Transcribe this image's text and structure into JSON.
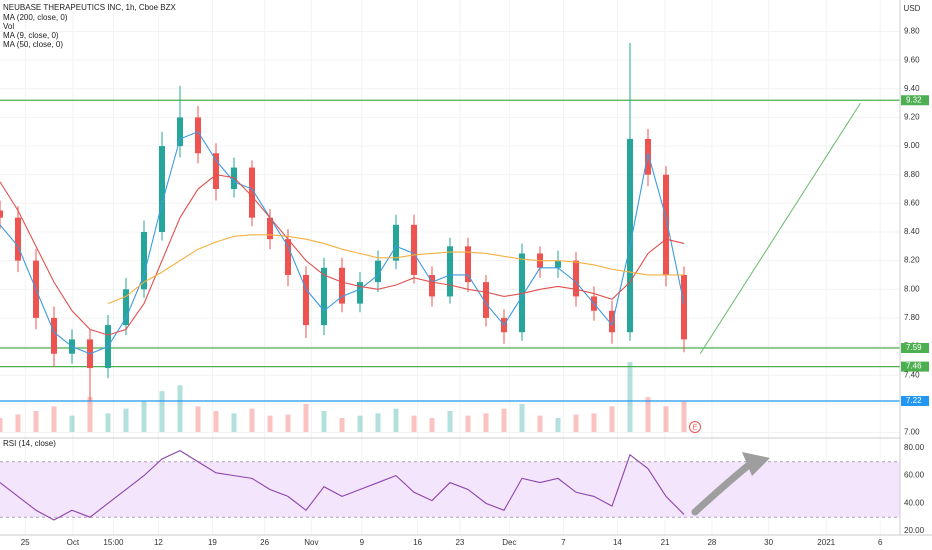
{
  "chart_data": {
    "type": "candlestick",
    "title": "NEUBASE THERAPEUTICS INC, 1h, Cboe BZX",
    "indicators": [
      "MA (200, close, 0)",
      "Vol",
      "MA (9, close, 0)",
      "MA (50, close, 0)"
    ],
    "currency": "USD",
    "earnings_marker": "E",
    "x": [
      0,
      2,
      4,
      6,
      8,
      10,
      12,
      14,
      16,
      18,
      20,
      22,
      24,
      26,
      28,
      30,
      32,
      34,
      36,
      38,
      40,
      42,
      44,
      46,
      48,
      50,
      52,
      54,
      56,
      58,
      60,
      62,
      64,
      66,
      68,
      70,
      72,
      74,
      76
    ],
    "open": [
      8.55,
      8.5,
      8.2,
      7.8,
      7.55,
      7.65,
      7.45,
      7.75,
      8.0,
      8.4,
      9.0,
      9.2,
      8.95,
      8.7,
      8.85,
      8.5,
      8.35,
      8.1,
      7.75,
      8.15,
      7.9,
      8.05,
      8.2,
      8.45,
      8.1,
      7.95,
      8.3,
      8.05,
      7.8,
      7.7,
      8.25,
      8.15,
      8.2,
      7.95,
      7.85,
      7.7,
      9.05,
      8.8,
      8.1
    ],
    "high": [
      8.62,
      8.58,
      8.28,
      7.88,
      7.72,
      7.72,
      7.82,
      8.08,
      8.48,
      9.1,
      9.42,
      9.28,
      9.02,
      8.92,
      8.9,
      8.56,
      8.42,
      8.16,
      8.22,
      8.22,
      8.12,
      8.27,
      8.52,
      8.52,
      8.16,
      8.36,
      8.36,
      8.1,
      7.86,
      8.32,
      8.3,
      8.27,
      8.26,
      8.02,
      7.92,
      9.72,
      9.12,
      8.86,
      8.16
    ],
    "low": [
      8.42,
      8.12,
      7.72,
      7.46,
      7.48,
      7.22,
      7.38,
      7.68,
      7.94,
      8.34,
      8.92,
      8.88,
      8.62,
      8.64,
      8.44,
      8.28,
      8.02,
      7.66,
      7.68,
      7.84,
      7.84,
      7.98,
      8.14,
      8.04,
      7.88,
      7.9,
      7.98,
      7.74,
      7.62,
      7.64,
      8.08,
      8.08,
      7.88,
      7.78,
      7.62,
      7.64,
      8.72,
      8.02,
      7.56
    ],
    "close": [
      8.5,
      8.2,
      7.8,
      7.55,
      7.65,
      7.45,
      7.75,
      8.0,
      8.4,
      9.0,
      9.2,
      8.95,
      8.7,
      8.85,
      8.5,
      8.35,
      8.1,
      7.75,
      8.15,
      7.9,
      8.05,
      8.2,
      8.45,
      8.1,
      7.95,
      8.3,
      8.05,
      7.8,
      7.7,
      8.25,
      8.15,
      8.2,
      7.95,
      7.85,
      7.7,
      9.05,
      8.8,
      8.1,
      7.65
    ],
    "up_color": "#26a69a",
    "down_color": "#ef5350",
    "volume": [
      12000,
      15000,
      18000,
      22000,
      14000,
      30000,
      16000,
      20000,
      26000,
      35000,
      40000,
      22000,
      18000,
      16000,
      20000,
      14000,
      15000,
      24000,
      18000,
      12000,
      14000,
      16000,
      20000,
      14000,
      12000,
      18000,
      14000,
      16000,
      20000,
      24000,
      14000,
      12000,
      15000,
      16000,
      22000,
      60000,
      30000,
      22000,
      26000
    ],
    "vlim": [
      0,
      60000
    ],
    "series": [
      {
        "name": "MA (9, close, 0)",
        "color": "#3b9be0",
        "values": [
          8.45,
          8.3,
          8.0,
          7.7,
          7.6,
          7.55,
          7.6,
          7.8,
          8.1,
          8.6,
          9.05,
          9.1,
          8.9,
          8.75,
          8.7,
          8.5,
          8.3,
          8.0,
          7.85,
          7.95,
          8.0,
          8.1,
          8.3,
          8.25,
          8.05,
          8.1,
          8.1,
          7.9,
          7.75,
          7.95,
          8.15,
          8.15,
          8.05,
          7.9,
          7.75,
          8.3,
          8.95,
          8.5,
          7.9
        ]
      },
      {
        "name": "MA (50, close, 0)",
        "color": "#e0504d",
        "values": [
          8.75,
          8.55,
          8.3,
          8.05,
          7.85,
          7.72,
          7.68,
          7.72,
          7.9,
          8.2,
          8.5,
          8.7,
          8.8,
          8.78,
          8.65,
          8.5,
          8.35,
          8.2,
          8.1,
          8.05,
          8.02,
          8.0,
          8.03,
          8.08,
          8.05,
          8.03,
          8.0,
          7.98,
          7.95,
          7.97,
          8.0,
          8.02,
          8.0,
          7.97,
          7.93,
          8.05,
          8.25,
          8.35,
          8.32
        ]
      },
      {
        "name": "MA (200, close, 0)",
        "color": "#f5b041",
        "values": [
          null,
          null,
          null,
          null,
          null,
          null,
          7.9,
          7.95,
          8.05,
          8.12,
          8.2,
          8.28,
          8.33,
          8.37,
          8.38,
          8.38,
          8.37,
          8.35,
          8.32,
          8.28,
          8.25,
          8.22,
          8.22,
          8.24,
          8.25,
          8.26,
          8.26,
          8.25,
          8.23,
          8.21,
          8.2,
          8.2,
          8.19,
          8.17,
          8.14,
          8.12,
          8.1,
          8.1,
          8.1
        ]
      }
    ],
    "levels": [
      {
        "value": 9.32,
        "color": "#4caf50"
      },
      {
        "value": 7.59,
        "color": "#4caf50"
      },
      {
        "value": 7.46,
        "color": "#4caf50"
      },
      {
        "value": 7.22,
        "color": "#2196f3"
      }
    ],
    "trendline": {
      "x": [
        77.8,
        95.6
      ],
      "y": [
        7.55,
        9.3
      ],
      "color": "#66bb6a"
    },
    "xlim": [
      0,
      100
    ],
    "ylim": [
      6.965,
      10.02
    ],
    "yticks": [
      {
        "value": 7.0,
        "label": "7.00"
      },
      {
        "value": 7.2,
        "label": "7.20"
      },
      {
        "value": 7.4,
        "label": "7.40"
      },
      {
        "value": 7.6,
        "label": "7.60"
      },
      {
        "value": 7.8,
        "label": "7.80"
      },
      {
        "value": 8.0,
        "label": "8.00"
      },
      {
        "value": 8.2,
        "label": "8.20"
      },
      {
        "value": 8.4,
        "label": "8.40"
      },
      {
        "value": 8.6,
        "label": "8.60"
      },
      {
        "value": 8.8,
        "label": "8.80"
      },
      {
        "value": 9.0,
        "label": "9.00"
      },
      {
        "value": 9.2,
        "label": "9.20"
      },
      {
        "value": 9.4,
        "label": "9.40"
      },
      {
        "value": 9.6,
        "label": "9.60"
      },
      {
        "value": 9.8,
        "label": "9.80"
      }
    ],
    "xticks": [
      {
        "value": 2.8,
        "label": "25"
      },
      {
        "value": 8.1,
        "label": "Oct"
      },
      {
        "value": 12.6,
        "label": "15:00"
      },
      {
        "value": 17.6,
        "label": "12"
      },
      {
        "value": 23.6,
        "label": "19"
      },
      {
        "value": 29.4,
        "label": "26"
      },
      {
        "value": 34.6,
        "label": "Nov"
      },
      {
        "value": 40.2,
        "label": "9"
      },
      {
        "value": 46.4,
        "label": "16"
      },
      {
        "value": 51.1,
        "label": "23"
      },
      {
        "value": 56.6,
        "label": "Dec"
      },
      {
        "value": 62.6,
        "label": "7"
      },
      {
        "value": 68.6,
        "label": "14"
      },
      {
        "value": 73.9,
        "label": "21"
      },
      {
        "value": 79.1,
        "label": "28"
      },
      {
        "value": 85.4,
        "label": "30"
      },
      {
        "value": 91.8,
        "label": "2021"
      },
      {
        "value": 97.8,
        "label": "6"
      }
    ],
    "rsi": {
      "title": "RSI (14, close)",
      "color": "#8e44ad",
      "values": [
        55,
        45,
        35,
        28,
        35,
        30,
        40,
        50,
        60,
        72,
        78,
        70,
        62,
        60,
        58,
        50,
        45,
        35,
        52,
        45,
        50,
        55,
        60,
        48,
        42,
        55,
        50,
        40,
        35,
        58,
        55,
        58,
        48,
        45,
        38,
        75,
        65,
        45,
        32
      ],
      "band": [
        30,
        70
      ],
      "ylim": [
        18.6,
        85.7
      ],
      "yticks": [
        {
          "value": 20,
          "label": "20.00"
        },
        {
          "value": 40,
          "label": "40.00"
        },
        {
          "value": 60,
          "label": "60.00"
        },
        {
          "value": 80,
          "label": "80.00"
        }
      ]
    }
  }
}
